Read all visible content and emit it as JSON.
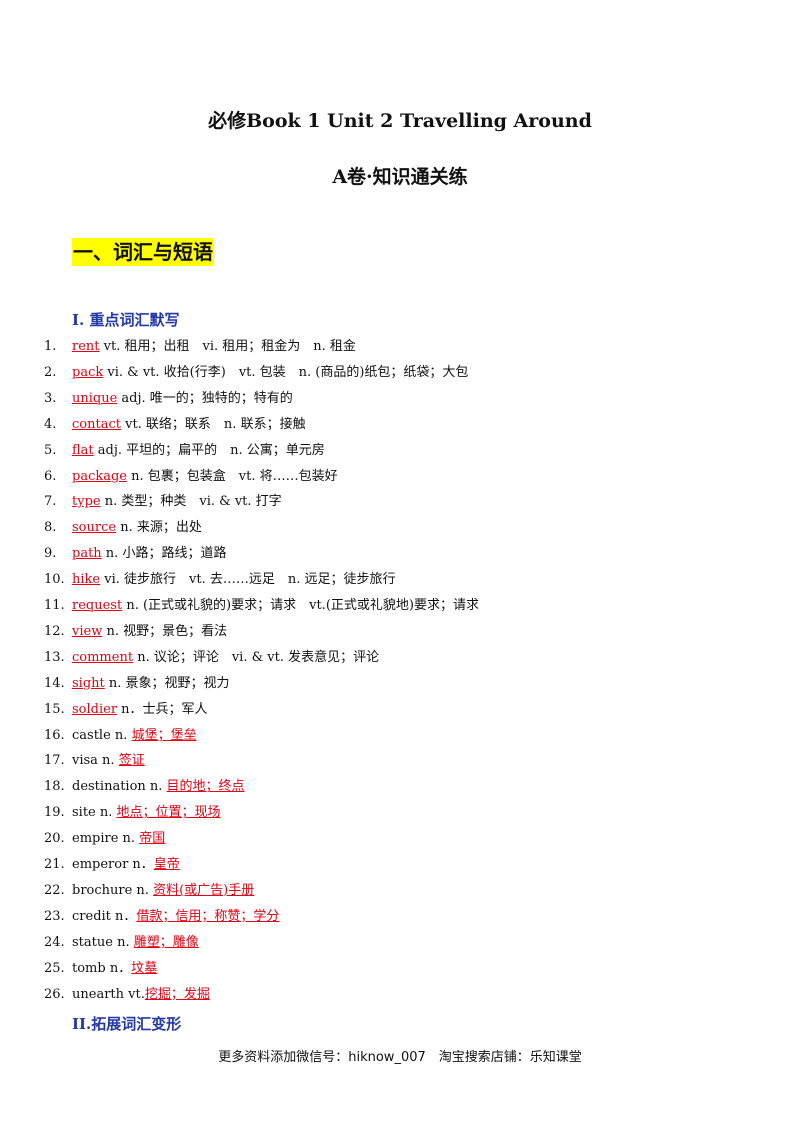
{
  "header": {
    "title": "必修Book 1 Unit 2 Travelling Around",
    "subtitle": "A卷·知识通关练"
  },
  "section": {
    "heading": "一、词汇与短语",
    "part1_title": "I.  重点词汇默写",
    "part2_title": "II.拓展词汇变形"
  },
  "items": [
    {
      "num": "1.",
      "answer": "rent",
      "after": " vt. 租用；出租　vi. 租用；租金为　n. 租金"
    },
    {
      "num": "2.",
      "answer": "pack",
      "after": " vi. & vt. 收拾(行李)　vt. 包装　n. (商品的)纸包；纸袋；大包"
    },
    {
      "num": "3.",
      "answer": "unique",
      "after": " adj. 唯一的；独特的；特有的"
    },
    {
      "num": "4.",
      "answer": "contact",
      "after": " vt. 联络；联系　n. 联系；接触"
    },
    {
      "num": "5.",
      "answer": "flat",
      "after": " adj. 平坦的；扁平的　n. 公寓；单元房"
    },
    {
      "num": "6.",
      "answer": "package",
      "after": " n. 包裹；包装盒　vt. 将……包装好"
    },
    {
      "num": "7.",
      "answer": "type",
      "after": " n. 类型；种类　vi. & vt. 打字"
    },
    {
      "num": "8.",
      "answer": "source",
      "after": " n. 来源；出处"
    },
    {
      "num": "9.",
      "answer": "path",
      "after": " n. 小路；路线；道路"
    },
    {
      "num": "10.",
      "answer": "hike",
      "after": " vi. 徒步旅行　vt. 去……远足　n. 远足；徒步旅行"
    },
    {
      "num": "11.",
      "answer": "request",
      "after": " n. (正式或礼貌的)要求；请求　vt.(正式或礼貌地)要求；请求"
    },
    {
      "num": "12.",
      "answer": "view",
      "after": " n. 视野；景色；看法"
    },
    {
      "num": "13.",
      "answer": "comment",
      "after": " n. 议论；评论　vi. & vt. 发表意见；评论"
    },
    {
      "num": "14.",
      "answer": "sight",
      "after": " n. 景象；视野；视力"
    },
    {
      "num": "15.",
      "answer": "soldier",
      "after": " n．士兵；军人"
    },
    {
      "num": "16.",
      "before": "castle n. ",
      "answer": "城堡；堡垒"
    },
    {
      "num": "17.",
      "before": "visa n. ",
      "answer": "签证"
    },
    {
      "num": "18.",
      "before": "destination n. ",
      "answer": "目的地；终点"
    },
    {
      "num": "19.",
      "before": "site n. ",
      "answer": "地点；位置；现场"
    },
    {
      "num": "20.",
      "before": "empire n. ",
      "answer": "帝国"
    },
    {
      "num": "21.",
      "before": "emperor n．",
      "answer": "皇帝"
    },
    {
      "num": "22.",
      "before": "brochure n. ",
      "answer": "资料(或广告)手册"
    },
    {
      "num": "23.",
      "before": "credit n．",
      "answer": "借款；信用；称赞；学分"
    },
    {
      "num": "24.",
      "before": "statue n. ",
      "answer": "雕塑；雕像"
    },
    {
      "num": "25.",
      "before": "tomb n．",
      "answer": "坟墓"
    },
    {
      "num": "26.",
      "before": "unearth vt.",
      "answer": "挖掘；发掘"
    }
  ],
  "footer": {
    "text": "更多资料添加微信号：hiknow_007　淘宝搜索店铺：乐知课堂"
  }
}
